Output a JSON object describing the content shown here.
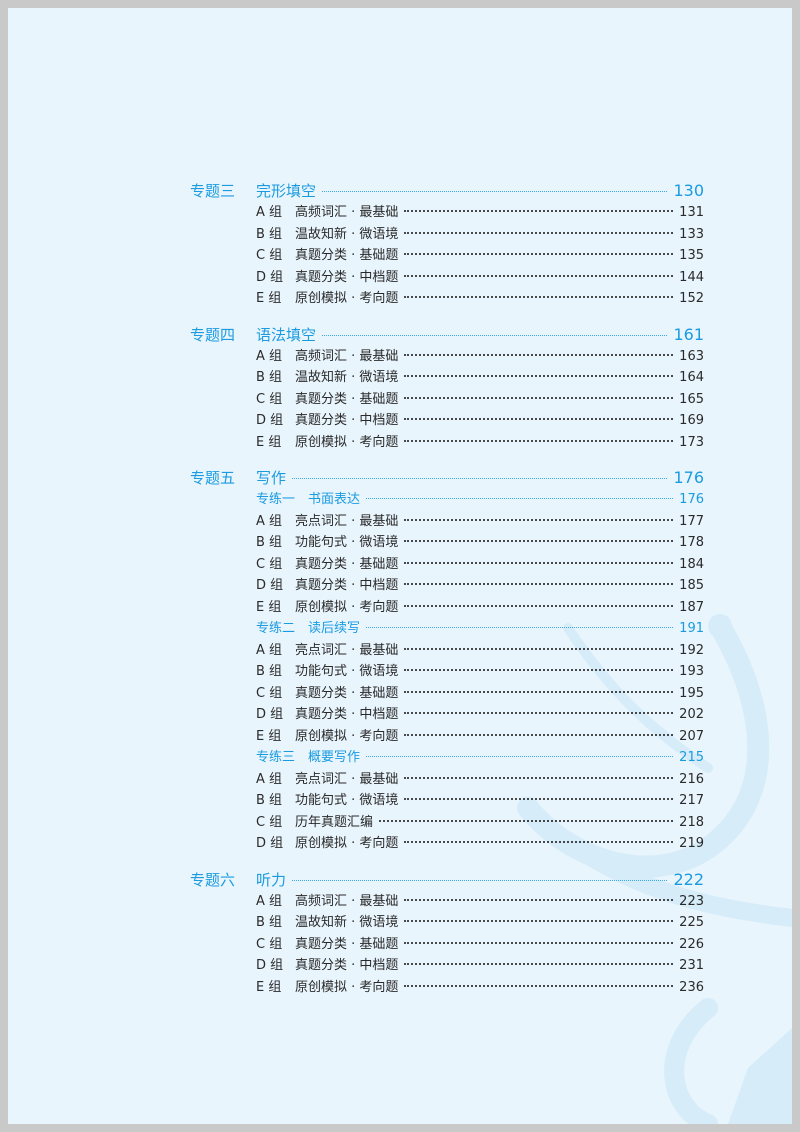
{
  "colors": {
    "accent": "#1a9be0",
    "text": "#2a2a2a",
    "background": "#e9f5fd",
    "border": "#c9c9c9"
  },
  "sections": [
    {
      "label": "专题三",
      "title": "完形填空",
      "page": "130",
      "rows": [
        {
          "type": "item",
          "group": "A 组",
          "title": "高频词汇 · 最基础",
          "page": "131"
        },
        {
          "type": "item",
          "group": "B 组",
          "title": "温故知新 · 微语境",
          "page": "133"
        },
        {
          "type": "item",
          "group": "C 组",
          "title": "真题分类 · 基础题",
          "page": "135"
        },
        {
          "type": "item",
          "group": "D 组",
          "title": "真题分类 · 中档题",
          "page": "144"
        },
        {
          "type": "item",
          "group": "E 组",
          "title": "原创模拟 · 考向题",
          "page": "152"
        }
      ]
    },
    {
      "label": "专题四",
      "title": "语法填空",
      "page": "161",
      "rows": [
        {
          "type": "item",
          "group": "A 组",
          "title": "高频词汇 · 最基础",
          "page": "163"
        },
        {
          "type": "item",
          "group": "B 组",
          "title": "温故知新 · 微语境",
          "page": "164"
        },
        {
          "type": "item",
          "group": "C 组",
          "title": "真题分类 · 基础题",
          "page": "165"
        },
        {
          "type": "item",
          "group": "D 组",
          "title": "真题分类 · 中档题",
          "page": "169"
        },
        {
          "type": "item",
          "group": "E 组",
          "title": "原创模拟 · 考向题",
          "page": "173"
        }
      ]
    },
    {
      "label": "专题五",
      "title": "写作",
      "page": "176",
      "rows": [
        {
          "type": "sub",
          "group": "专练一",
          "title": "书面表达",
          "page": "176"
        },
        {
          "type": "item",
          "group": "A 组",
          "title": "亮点词汇 · 最基础",
          "page": "177"
        },
        {
          "type": "item",
          "group": "B 组",
          "title": "功能句式 · 微语境",
          "page": "178"
        },
        {
          "type": "item",
          "group": "C 组",
          "title": "真题分类 · 基础题",
          "page": "184"
        },
        {
          "type": "item",
          "group": "D 组",
          "title": "真题分类 · 中档题",
          "page": "185"
        },
        {
          "type": "item",
          "group": "E 组",
          "title": "原创模拟 · 考向题",
          "page": "187"
        },
        {
          "type": "sub",
          "group": "专练二",
          "title": "读后续写",
          "page": "191"
        },
        {
          "type": "item",
          "group": "A 组",
          "title": "亮点词汇 · 最基础",
          "page": "192"
        },
        {
          "type": "item",
          "group": "B 组",
          "title": "功能句式 · 微语境",
          "page": "193"
        },
        {
          "type": "item",
          "group": "C 组",
          "title": "真题分类 · 基础题",
          "page": "195"
        },
        {
          "type": "item",
          "group": "D 组",
          "title": "真题分类 · 中档题",
          "page": "202"
        },
        {
          "type": "item",
          "group": "E 组",
          "title": "原创模拟 · 考向题",
          "page": "207"
        },
        {
          "type": "sub",
          "group": "专练三",
          "title": "概要写作",
          "page": "215"
        },
        {
          "type": "item",
          "group": "A 组",
          "title": "亮点词汇 · 最基础",
          "page": "216"
        },
        {
          "type": "item",
          "group": "B 组",
          "title": "功能句式 · 微语境",
          "page": "217"
        },
        {
          "type": "item",
          "group": "C 组",
          "title": "历年真题汇编",
          "page": "218"
        },
        {
          "type": "item",
          "group": "D 组",
          "title": "原创模拟 · 考向题",
          "page": "219"
        }
      ]
    },
    {
      "label": "专题六",
      "title": "听力",
      "page": "222",
      "rows": [
        {
          "type": "item",
          "group": "A 组",
          "title": "高频词汇 · 最基础",
          "page": "223"
        },
        {
          "type": "item",
          "group": "B 组",
          "title": "温故知新 · 微语境",
          "page": "225"
        },
        {
          "type": "item",
          "group": "C 组",
          "title": "真题分类 · 基础题",
          "page": "226"
        },
        {
          "type": "item",
          "group": "D 组",
          "title": "真题分类 · 中档题",
          "page": "231"
        },
        {
          "type": "item",
          "group": "E 组",
          "title": "原创模拟 · 考向题",
          "page": "236"
        }
      ]
    }
  ]
}
